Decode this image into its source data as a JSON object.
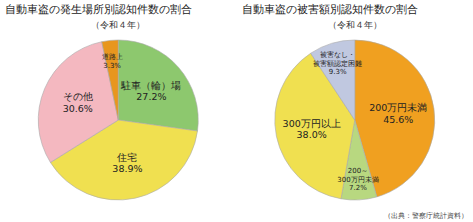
{
  "chart_data": [
    {
      "type": "pie",
      "title": "自動車盗の発生場所別認知件数の割合",
      "subtitle": "（令和４年）",
      "categories": [
        "駐車（輪）場",
        "住宅",
        "その他",
        "道路上"
      ],
      "values": [
        27.2,
        38.9,
        30.6,
        3.3
      ],
      "value_labels": [
        "27.2%",
        "38.9%",
        "30.6%",
        "3.3%"
      ],
      "colors": [
        "#8dc86e",
        "#f0e050",
        "#f4b8c0",
        "#e8961e"
      ],
      "data_labels": true
    },
    {
      "type": "pie",
      "title": "自動車盗の被害額別認知件数の割合",
      "subtitle": "（令和４年）",
      "categories": [
        "200万円未満",
        "200～\n300万円未満",
        "300万円以上",
        "被害なし・\n被害額認定困難"
      ],
      "values": [
        45.6,
        7.2,
        38.0,
        9.3
      ],
      "value_labels": [
        "45.6%",
        "7.2%",
        "38.0%",
        "9.3%"
      ],
      "colors": [
        "#f0a020",
        "#b8d880",
        "#f0e050",
        "#c0c8e0"
      ],
      "data_labels": true,
      "source": "（出典：警察庁統計資料）"
    }
  ]
}
